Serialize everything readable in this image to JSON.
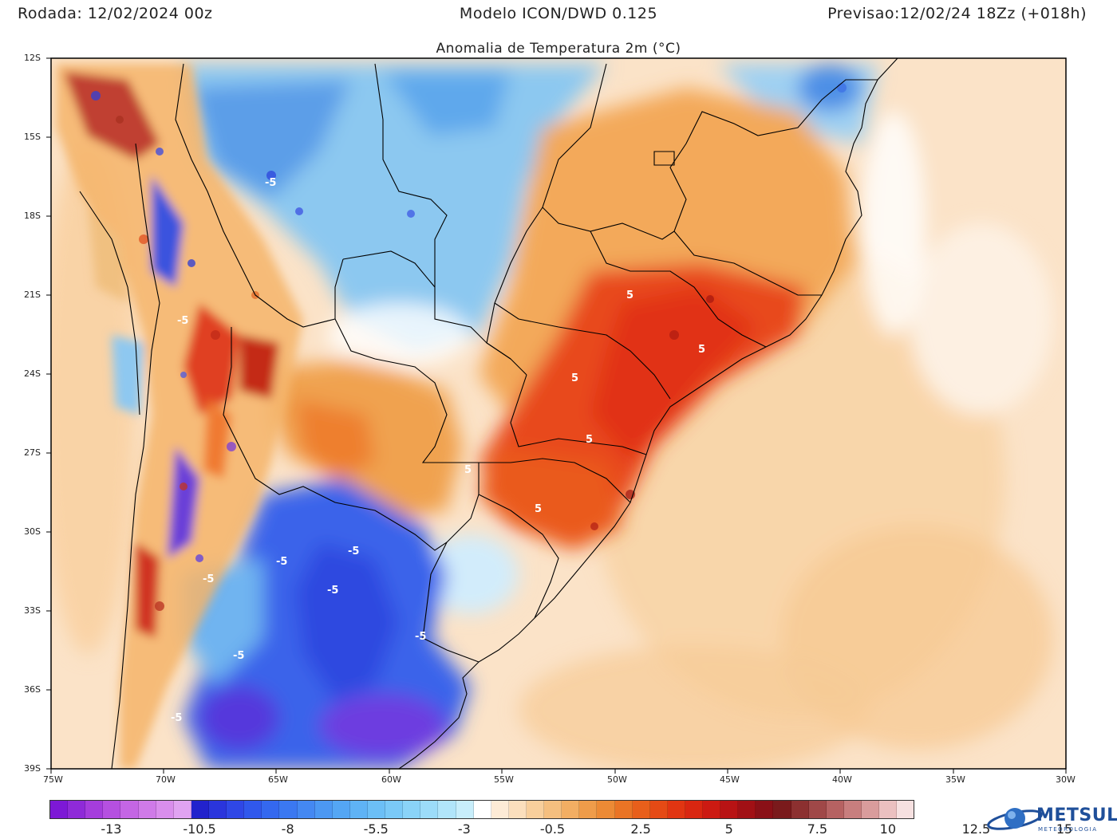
{
  "header": {
    "run_label": "Rodada: 12/02/2024 00z",
    "model_label": "Modelo ICON/DWD 0.125",
    "valid_label": "Previsao:12/02/24 18Zz (+018h)"
  },
  "map": {
    "title": "Anomalia de Temperatura 2m (°C)",
    "lat_labels": [
      "12S",
      "15S",
      "18S",
      "21S",
      "24S",
      "27S",
      "30S",
      "33S",
      "36S",
      "39S"
    ],
    "lon_labels": [
      "75W",
      "70W",
      "65W",
      "60W",
      "55W",
      "50W",
      "45W",
      "40W",
      "35W",
      "30W"
    ],
    "contour_labels": [
      "5",
      "5",
      "5",
      "5",
      "5",
      "5",
      "-5",
      "-5",
      "-5",
      "-5",
      "-5",
      "-5",
      "-5",
      "-5",
      "-5"
    ],
    "colors": {
      "ocean_warm": "#fbe6cf",
      "warm": "#f6b766",
      "hot": "#e4381d",
      "cold": "#7ec3ef",
      "very_cold": "#2f56e6",
      "coast": "#000000"
    }
  },
  "colorbar": {
    "labels": [
      "-13",
      "-10.5",
      "-8",
      "-5.5",
      "-3",
      "-0.5",
      "2.5",
      "5",
      "7.5",
      "10",
      "12.5",
      "15"
    ],
    "colors": [
      "#7d18d6",
      "#8f2ad8",
      "#a53ddc",
      "#b550e0",
      "#c466e4",
      "#cf7ae8",
      "#d98eec",
      "#e0a3f1",
      "#2222cc",
      "#2a35dc",
      "#2f47e6",
      "#3058ec",
      "#3468ef",
      "#3b78f1",
      "#4488f2",
      "#4c98f3",
      "#54a6f4",
      "#5fb3f5",
      "#6cbff6",
      "#7ac9f7",
      "#8ad3f8",
      "#9cdcf9",
      "#b1e5fa",
      "#c8eefb",
      "#ffffff",
      "#fdebd6",
      "#fbdfbd",
      "#f8cf9c",
      "#f5bf7f",
      "#f2ae63",
      "#ef9c4a",
      "#ec8a35",
      "#ea7425",
      "#e85f1b",
      "#e54a15",
      "#e13512",
      "#d92611",
      "#cc1a12",
      "#b81314",
      "#a11015",
      "#8a1017",
      "#7a1a1c",
      "#8c3030",
      "#a04848",
      "#b66262",
      "#c87e7e",
      "#d99c9c",
      "#ebc0c0",
      "#f6e0e0"
    ],
    "tick_positions": [
      3.5,
      8.5,
      13.5,
      18.5,
      23.5,
      28.5,
      33.5,
      38.5,
      43.5,
      47.5,
      52.5,
      57.5
    ]
  },
  "logo": {
    "name": "METSUL",
    "subtitle": "METEOROLOGIA"
  }
}
